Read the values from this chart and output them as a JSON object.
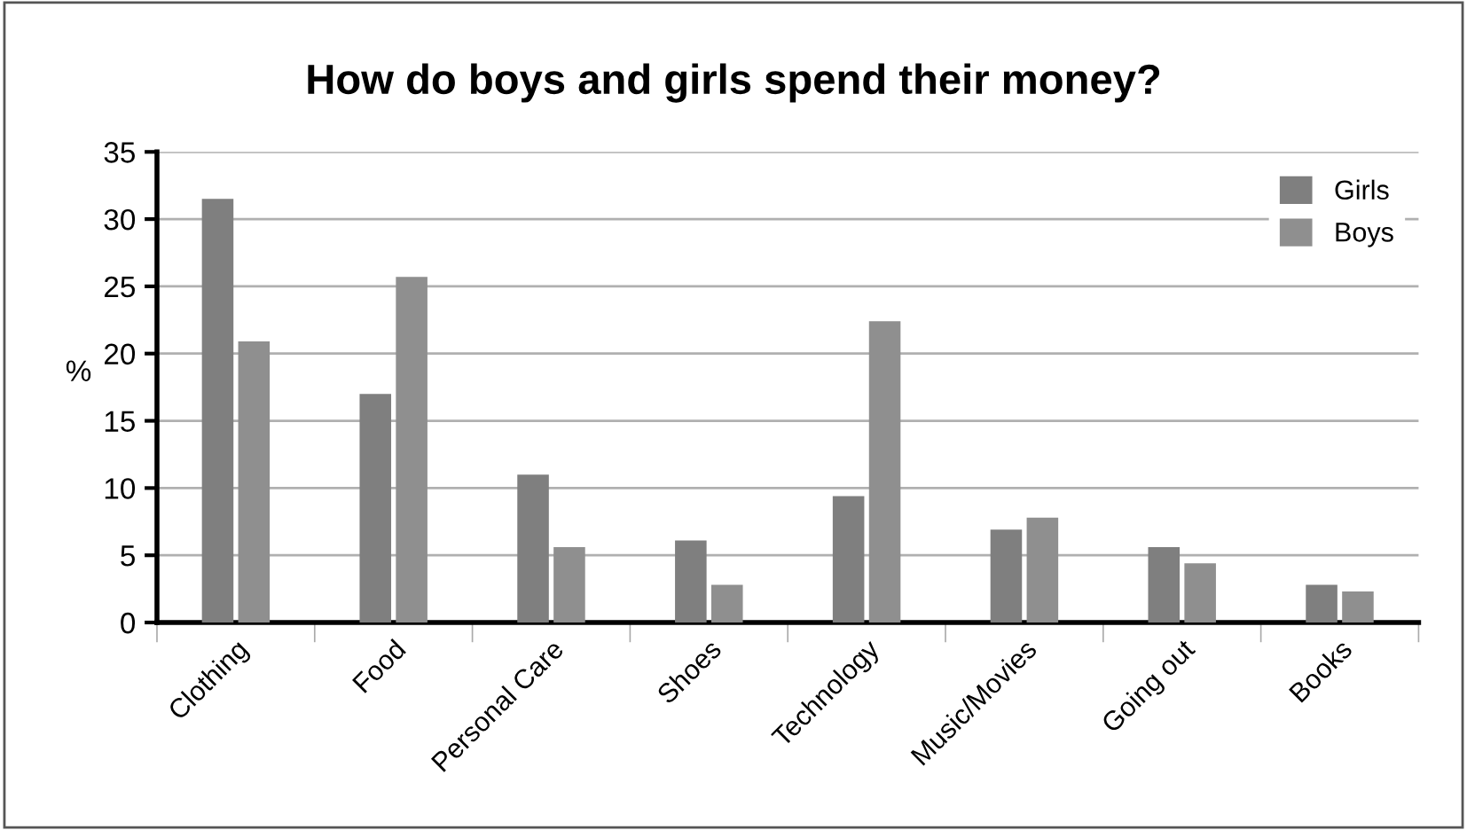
{
  "chart_data": {
    "type": "bar",
    "title": "How do boys and girls spend their money?",
    "ylabel": "%",
    "categories": [
      "Clothing",
      "Food",
      "Personal Care",
      "Shoes",
      "Technology",
      "Music/Movies",
      "Going out",
      "Books"
    ],
    "series": [
      {
        "name": "Girls",
        "color": "#7f7f7f",
        "values": [
          31.5,
          17.0,
          11.0,
          6.1,
          9.4,
          6.9,
          5.6,
          2.8
        ]
      },
      {
        "name": "Boys",
        "color": "#8f8f8f",
        "values": [
          20.9,
          25.7,
          5.6,
          2.8,
          22.4,
          7.8,
          4.4,
          2.3
        ]
      }
    ],
    "ylim": [
      0,
      35
    ],
    "yticks": [
      0,
      5,
      10,
      15,
      20,
      25,
      30,
      35
    ],
    "grid": "y",
    "legend": "top right"
  }
}
